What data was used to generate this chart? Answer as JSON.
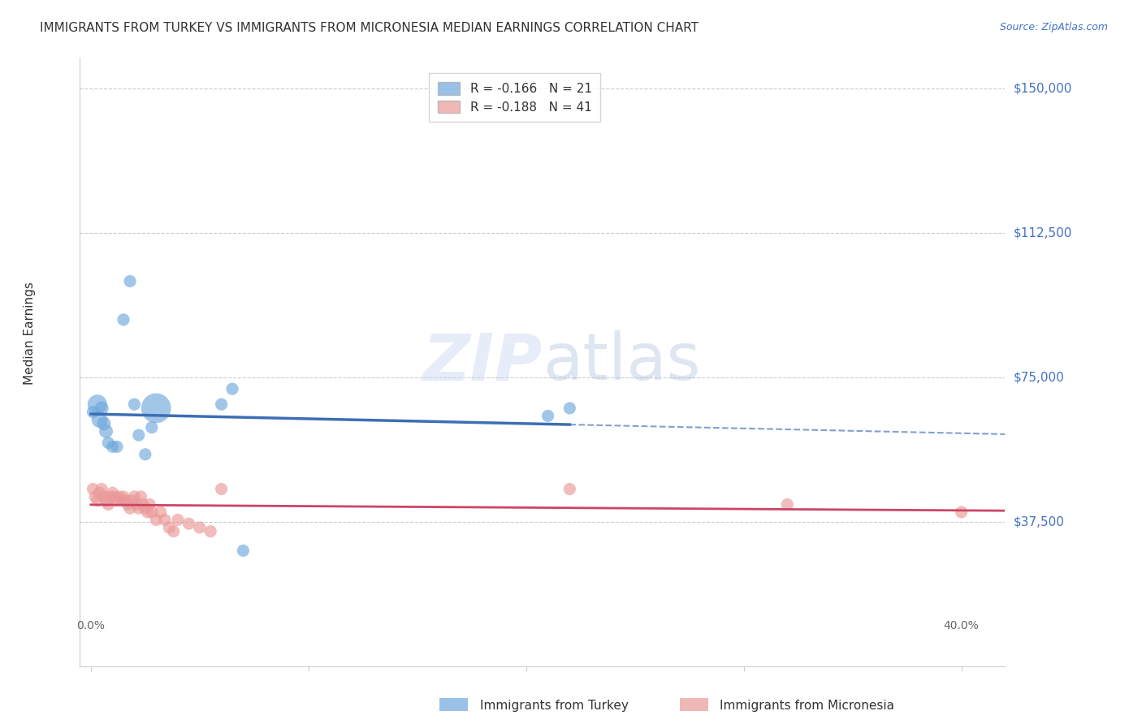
{
  "title": "IMMIGRANTS FROM TURKEY VS IMMIGRANTS FROM MICRONESIA MEDIAN EARNINGS CORRELATION CHART",
  "source": "Source: ZipAtlas.com",
  "ylabel": "Median Earnings",
  "y_ticks": [
    0,
    37500,
    75000,
    112500,
    150000
  ],
  "y_tick_labels": [
    "",
    "$37,500",
    "$75,000",
    "$112,500",
    "$150,000"
  ],
  "y_min": 15000,
  "y_max": 158000,
  "x_min": -0.005,
  "x_max": 0.42,
  "watermark_zip": "ZIP",
  "watermark_atlas": "atlas",
  "legend1_label": "Immigrants from Turkey",
  "legend2_label": "Immigrants from Micronesia",
  "turkey_R": "-0.166",
  "turkey_N": "21",
  "micronesia_R": "-0.188",
  "micronesia_N": "41",
  "turkey_color": "#6fa8dc",
  "micronesia_color": "#ea9999",
  "turkey_line_color": "#3d6eb5",
  "micronesia_line_color": "#cc4466",
  "axis_label_color": "#4472c4",
  "title_color": "#333333",
  "turkey_x": [
    0.001,
    0.003,
    0.004,
    0.005,
    0.006,
    0.007,
    0.008,
    0.01,
    0.012,
    0.015,
    0.018,
    0.02,
    0.022,
    0.025,
    0.028,
    0.03,
    0.06,
    0.065,
    0.07,
    0.21,
    0.22
  ],
  "turkey_y": [
    66000,
    68000,
    64000,
    67000,
    63000,
    61000,
    58000,
    57000,
    57000,
    90000,
    100000,
    68000,
    60000,
    55000,
    62000,
    67000,
    68000,
    72000,
    30000,
    65000,
    67000
  ],
  "turkey_size": [
    120,
    300,
    200,
    150,
    150,
    150,
    120,
    120,
    120,
    120,
    120,
    120,
    120,
    120,
    120,
    700,
    120,
    120,
    120,
    120,
    120
  ],
  "micronesia_x": [
    0.001,
    0.002,
    0.003,
    0.004,
    0.005,
    0.006,
    0.007,
    0.008,
    0.009,
    0.01,
    0.011,
    0.012,
    0.013,
    0.014,
    0.015,
    0.016,
    0.017,
    0.018,
    0.019,
    0.02,
    0.021,
    0.022,
    0.023,
    0.024,
    0.025,
    0.026,
    0.027,
    0.028,
    0.03,
    0.032,
    0.034,
    0.036,
    0.038,
    0.04,
    0.045,
    0.05,
    0.055,
    0.06,
    0.22,
    0.32,
    0.4
  ],
  "micronesia_y": [
    46000,
    44000,
    43000,
    45000,
    46000,
    44000,
    43000,
    42000,
    44000,
    45000,
    44000,
    43000,
    44000,
    43000,
    44000,
    43000,
    42000,
    41000,
    43000,
    44000,
    42000,
    41000,
    44000,
    42000,
    41000,
    40000,
    42000,
    40000,
    38000,
    40000,
    38000,
    36000,
    35000,
    38000,
    37000,
    36000,
    35000,
    46000,
    46000,
    42000,
    40000
  ],
  "micronesia_size": [
    120,
    120,
    120,
    120,
    120,
    120,
    120,
    120,
    120,
    120,
    120,
    120,
    120,
    120,
    120,
    120,
    120,
    120,
    120,
    120,
    120,
    120,
    120,
    120,
    120,
    120,
    120,
    120,
    120,
    120,
    120,
    120,
    120,
    120,
    120,
    120,
    120,
    120,
    120,
    120,
    120
  ]
}
